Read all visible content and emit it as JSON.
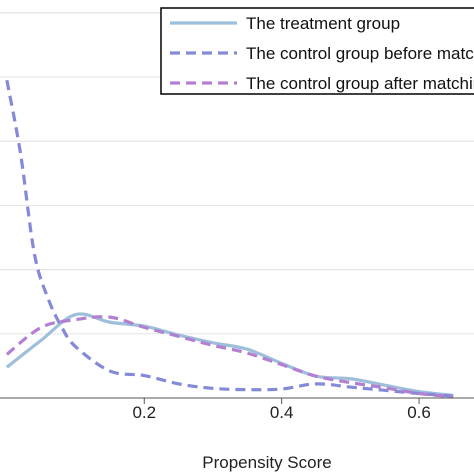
{
  "chart_data": {
    "type": "line",
    "title": "",
    "xlabel": "Propensity Score",
    "ylabel": "",
    "xlim": [
      -0.01,
      0.68
    ],
    "ylim": [
      0,
      6.2
    ],
    "x_ticks": [
      {
        "value": 0.2,
        "label": "0.2"
      },
      {
        "value": 0.4,
        "label": "0.4"
      },
      {
        "value": 0.6,
        "label": "0.6"
      }
    ],
    "gridlines_y": [
      1,
      2,
      3,
      4,
      5,
      6
    ],
    "grid": true,
    "legend_position": "top-right",
    "series": [
      {
        "name": "The treatment group",
        "color": "#9dbfdb",
        "dash": "solid",
        "x": [
          0.0,
          0.05,
          0.1,
          0.15,
          0.2,
          0.25,
          0.3,
          0.35,
          0.4,
          0.45,
          0.5,
          0.55,
          0.6,
          0.65
        ],
        "y": [
          0.48,
          0.9,
          1.3,
          1.18,
          1.12,
          0.98,
          0.86,
          0.76,
          0.54,
          0.34,
          0.3,
          0.2,
          0.1,
          0.04
        ]
      },
      {
        "name": "The control group before matching",
        "color": "#8489d8",
        "dash": "dashed",
        "x": [
          0.0,
          0.02,
          0.04,
          0.06,
          0.08,
          0.1,
          0.15,
          0.2,
          0.25,
          0.3,
          0.35,
          0.4,
          0.45,
          0.5,
          0.55,
          0.6,
          0.65
        ],
        "y": [
          4.95,
          3.8,
          2.25,
          1.55,
          1.1,
          0.8,
          0.42,
          0.35,
          0.22,
          0.15,
          0.13,
          0.14,
          0.22,
          0.17,
          0.12,
          0.07,
          0.03
        ]
      },
      {
        "name": "The control group after matching",
        "color": "#b37fd1",
        "dash": "dashed",
        "x": [
          0.0,
          0.05,
          0.1,
          0.15,
          0.2,
          0.25,
          0.3,
          0.35,
          0.4,
          0.45,
          0.5,
          0.55,
          0.6,
          0.65
        ],
        "y": [
          0.68,
          1.1,
          1.22,
          1.26,
          1.1,
          0.96,
          0.82,
          0.7,
          0.52,
          0.34,
          0.24,
          0.16,
          0.07,
          0.02
        ]
      }
    ]
  }
}
